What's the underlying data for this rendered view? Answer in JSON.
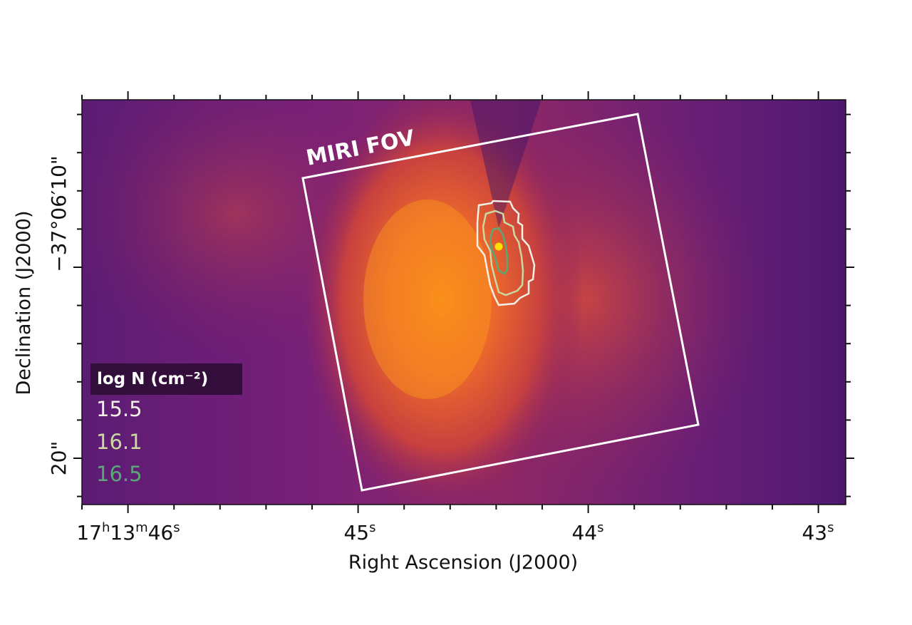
{
  "chart_data": {
    "type": "image",
    "xlabel": "Right Ascension (J2000)",
    "ylabel": "Declination (J2000)",
    "x_ticks": [
      {
        "base": "17",
        "h": "h",
        "m_val": "13",
        "m": "m",
        "s_val": "46",
        "s": "s"
      },
      {
        "s_val": "45",
        "s": "s"
      },
      {
        "s_val": "44",
        "s": "s"
      },
      {
        "s_val": "43",
        "s": "s"
      }
    ],
    "y_ticks": [
      "−37°06′10\"",
      "20\""
    ],
    "colormap": "inferno",
    "annotation": "MIRI FOV",
    "legend": {
      "title": "log N (cm⁻²)",
      "placement": "bottom-left",
      "entries": [
        {
          "label": "15.5",
          "color": "#f2f0e6"
        },
        {
          "label": "16.1",
          "color": "#c9d9a0"
        },
        {
          "label": "16.5",
          "color": "#5aa878"
        }
      ]
    },
    "marker_color": "#ffe100",
    "fov_color": "#ffffff"
  }
}
